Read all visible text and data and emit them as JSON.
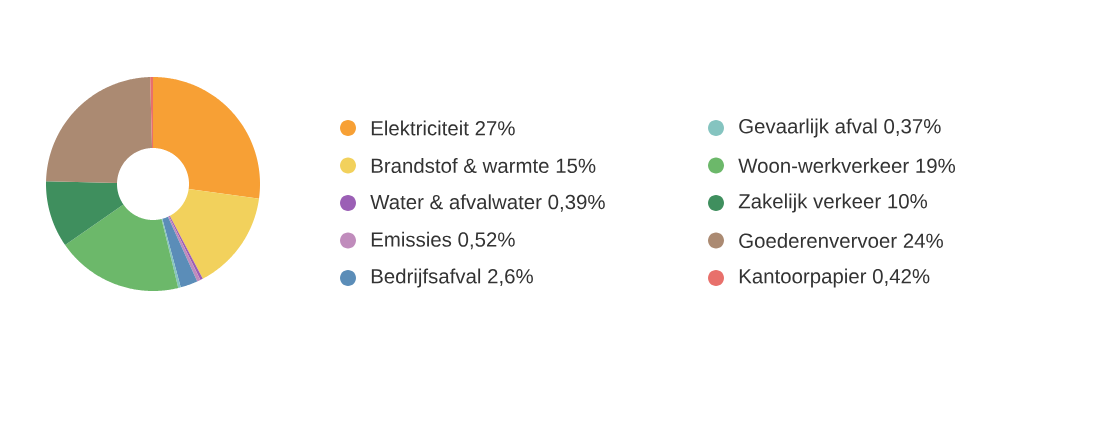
{
  "chart_data": {
    "type": "donut",
    "categories": [
      "Elektriciteit",
      "Brandstof & warmte",
      "Water & afvalwater",
      "Emissies",
      "Bedrijfsafval",
      "Gevaarlijk afval",
      "Woon-werkverkeer",
      "Zakelijk verkeer",
      "Goederenvervoer",
      "Kantoorpapier"
    ],
    "values": [
      27,
      15,
      0.39,
      0.52,
      2.6,
      0.37,
      19,
      10,
      24,
      0.42
    ],
    "value_labels": [
      "27%",
      "15%",
      "0,39%",
      "0,52%",
      "2,6%",
      "0,37%",
      "19%",
      "10%",
      "24%",
      "0,42%"
    ],
    "colors": [
      "#f7a035",
      "#f2d15c",
      "#9b5fb5",
      "#c08cbc",
      "#5b8db8",
      "#85c4c0",
      "#6cb86a",
      "#3f8f5e",
      "#ab8a72",
      "#e8706b"
    ],
    "legend": "right"
  }
}
